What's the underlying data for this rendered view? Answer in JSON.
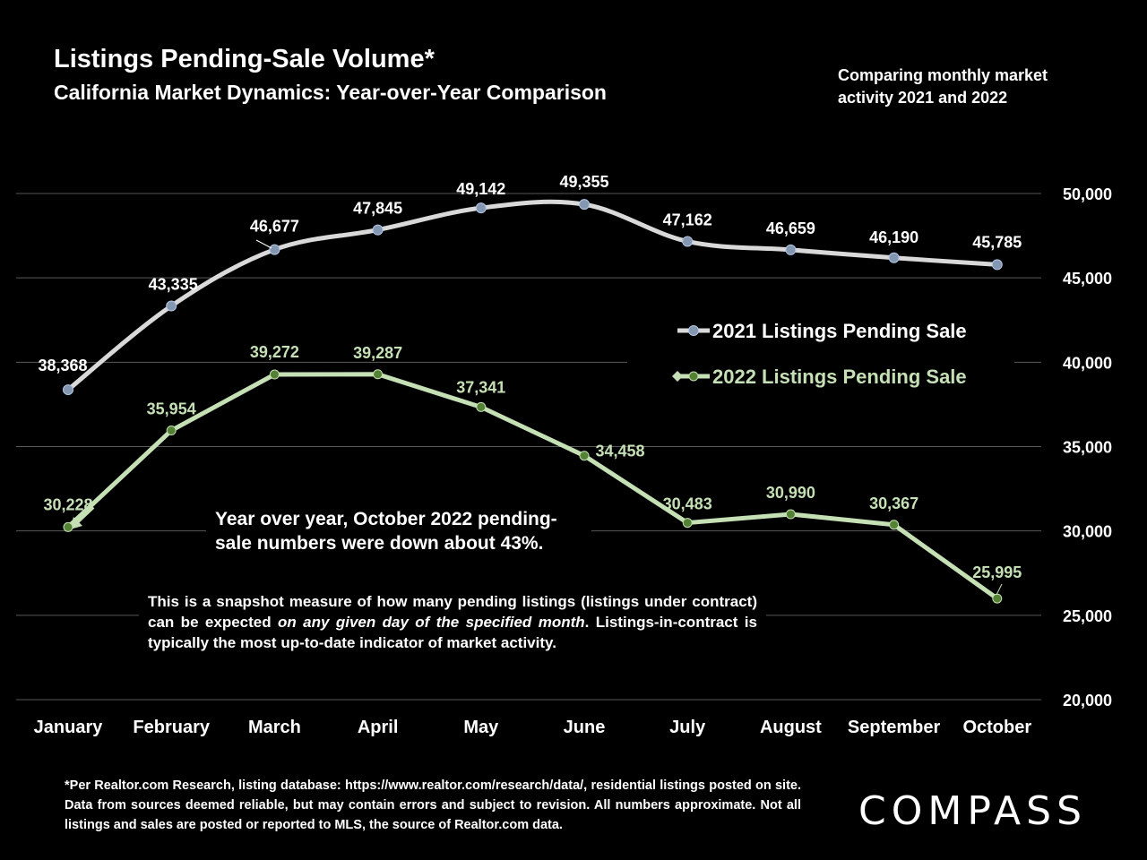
{
  "header": {
    "title": "Listings Pending-Sale Volume*",
    "subtitle": "California Market Dynamics: Year-over-Year Comparison",
    "corner_note": "Comparing monthly market activity 2021 and 2022"
  },
  "annotations": {
    "big": "Year over year, October 2022 pending-sale numbers were down about 43%.",
    "small_1": "This is a snapshot measure of how many pending listings (listings under contract) can be expected ",
    "small_italic": "on any given day of the specified month",
    "small_2": ". Listings-in-contract is typically the most up-to-date indicator of market activity."
  },
  "footnote": "*Per Realtor.com Research, listing database:  https://www.realtor.com/research/data/, residential listings posted on site. Data from sources deemed reliable, but may contain errors and subject to revision. All numbers approximate. Not all listings and sales are posted or reported to MLS, the source of Realtor.com data.",
  "logo": "COMPASS",
  "colors": {
    "series2021": "#d9d9d9",
    "marker2021": "#8497b0",
    "series2022": "#c5e0b4",
    "marker2022": "#548235",
    "grid": "#595959",
    "background": "#000000"
  },
  "chart_data": {
    "type": "line",
    "categories": [
      "January",
      "February",
      "March",
      "April",
      "May",
      "June",
      "July",
      "August",
      "September",
      "October"
    ],
    "series": [
      {
        "name": "2021 Listings Pending Sale",
        "values": [
          38368,
          43335,
          46677,
          47845,
          49142,
          49355,
          47162,
          46659,
          46190,
          45785
        ],
        "labels": [
          "38,368",
          "43,335",
          "46,677",
          "47,845",
          "49,142",
          "49,355",
          "47,162",
          "46,659",
          "46,190",
          "45,785"
        ]
      },
      {
        "name": "2022 Listings Pending Sale",
        "values": [
          30228,
          35954,
          39272,
          39287,
          37341,
          34458,
          30483,
          30990,
          30367,
          25995
        ],
        "labels": [
          "30,228",
          "35,954",
          "39,272",
          "39,287",
          "37,341",
          "34,458",
          "30,483",
          "30,990",
          "30,367",
          "25,995"
        ]
      }
    ],
    "ylim": [
      20000,
      50000
    ],
    "yticks": [
      20000,
      25000,
      30000,
      35000,
      40000,
      45000,
      50000
    ],
    "ytick_labels": [
      "20,000",
      "25,000",
      "30,000",
      "35,000",
      "40,000",
      "45,000",
      "50,000"
    ],
    "y_axis_side": "right",
    "grid": true,
    "legend_position": "center-right"
  }
}
